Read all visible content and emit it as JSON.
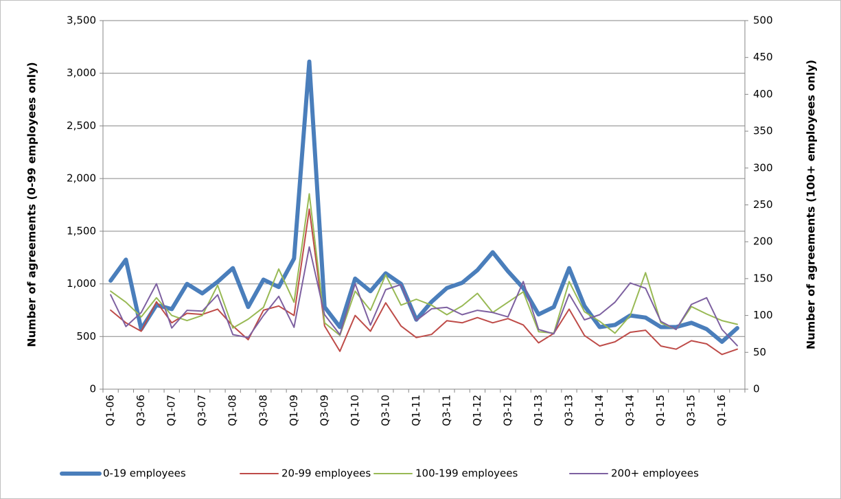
{
  "chart_data": {
    "type": "line",
    "ylabel": "Number of agreements (0-99 employees only)",
    "y2label": "Number of agreements (100+ employees only)",
    "categories": [
      "Q1-06",
      null,
      "Q3-06",
      null,
      "Q1-07",
      null,
      "Q3-07",
      null,
      "Q1-08",
      null,
      "Q3-08",
      null,
      "Q1-09",
      null,
      "Q3-09",
      null,
      "Q1-10",
      null,
      "Q3-10",
      null,
      "Q1-11",
      null,
      "Q3-11",
      null,
      "Q1-12",
      null,
      "Q3-12",
      null,
      "Q1-13",
      null,
      "Q3-13",
      null,
      "Q1-14",
      null,
      "Q3-14",
      null,
      "Q1-15",
      null,
      "Q3-15",
      null,
      "Q1-16",
      null
    ],
    "series": [
      {
        "name": "0-19 employees",
        "color": "#4a7ebb",
        "axis": "y",
        "values": [
          1030,
          1230,
          570,
          800,
          760,
          1000,
          910,
          1020,
          1150,
          780,
          1040,
          970,
          1240,
          3110,
          780,
          590,
          1050,
          930,
          1100,
          1000,
          660,
          830,
          960,
          1010,
          1130,
          1300,
          1120,
          960,
          710,
          780,
          1150,
          790,
          590,
          610,
          700,
          680,
          590,
          590,
          630,
          570,
          450,
          580
        ]
      },
      {
        "name": "20-99 employees",
        "color": "#be4b48",
        "axis": "y",
        "values": [
          750,
          630,
          550,
          830,
          630,
          720,
          710,
          760,
          600,
          470,
          750,
          790,
          700,
          1710,
          600,
          360,
          700,
          550,
          820,
          600,
          490,
          520,
          650,
          630,
          680,
          630,
          670,
          610,
          440,
          530,
          760,
          510,
          410,
          450,
          540,
          560,
          410,
          380,
          460,
          430,
          330,
          380
        ]
      },
      {
        "name": "100-199 employees",
        "color": "#98b954",
        "axis": "y2",
        "values": [
          133,
          118,
          98,
          124,
          100,
          93,
          100,
          141,
          83,
          95,
          111,
          163,
          118,
          265,
          90,
          73,
          133,
          107,
          155,
          114,
          122,
          114,
          101,
          113,
          130,
          104,
          118,
          132,
          78,
          76,
          146,
          105,
          92,
          76,
          100,
          158,
          90,
          81,
          112,
          102,
          93,
          88
        ]
      },
      {
        "name": "200+ employees",
        "color": "#7d60a0",
        "axis": "y2",
        "values": [
          128,
          85,
          104,
          143,
          83,
          107,
          106,
          128,
          74,
          70,
          100,
          126,
          84,
          193,
          101,
          74,
          143,
          87,
          135,
          142,
          93,
          109,
          111,
          101,
          107,
          104,
          98,
          146,
          81,
          75,
          129,
          94,
          101,
          118,
          144,
          137,
          92,
          81,
          115,
          124,
          81,
          59
        ]
      }
    ],
    "ylim": [
      0,
      3500
    ],
    "yticks": [
      0,
      500,
      {
        "value": 1000,
        "label": "1,000"
      },
      {
        "value": 1500,
        "label": "1,500"
      },
      {
        "value": 2000,
        "label": "2,000"
      },
      {
        "value": 2500,
        "label": "2,500"
      },
      {
        "value": 3000,
        "label": "3,000"
      },
      {
        "value": 3500,
        "label": "3,500"
      }
    ],
    "y2lim": [
      0,
      500
    ],
    "y2ticks": [
      0,
      50,
      100,
      150,
      200,
      250,
      300,
      350,
      400,
      450,
      500
    ],
    "grid": true,
    "legend": "bottom"
  }
}
